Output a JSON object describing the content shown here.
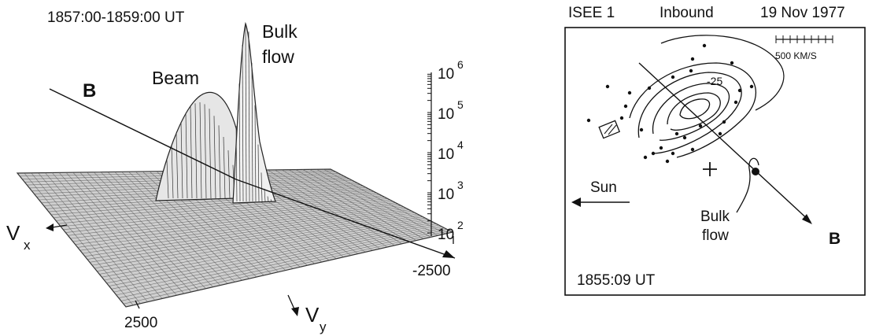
{
  "left_panel": {
    "time_range": "1857:00-1859:00 UT",
    "label_bulk_flow_1": "Bulk",
    "label_bulk_flow_2": "flow",
    "label_beam": "Beam",
    "label_b": "B",
    "axis_vx": "V",
    "axis_vx_sub": "x",
    "axis_vy": "V",
    "axis_vy_sub": "y",
    "tick_vy_end": "2500",
    "tick_vx_end": "-2500",
    "zscale": {
      "base": "10",
      "exponents": [
        "6",
        "5",
        "4",
        "3",
        "2"
      ]
    }
  },
  "right_panel": {
    "spacecraft": "ISEE 1",
    "pass": "Inbound",
    "date": "19 Nov 1977",
    "scale_label": "500 KM/S",
    "contour_label": "-25",
    "label_sun": "Sun",
    "label_bulk_flow_1": "Bulk",
    "label_bulk_flow_2": "flow",
    "label_b": "B",
    "time": "1855:09 UT"
  }
}
